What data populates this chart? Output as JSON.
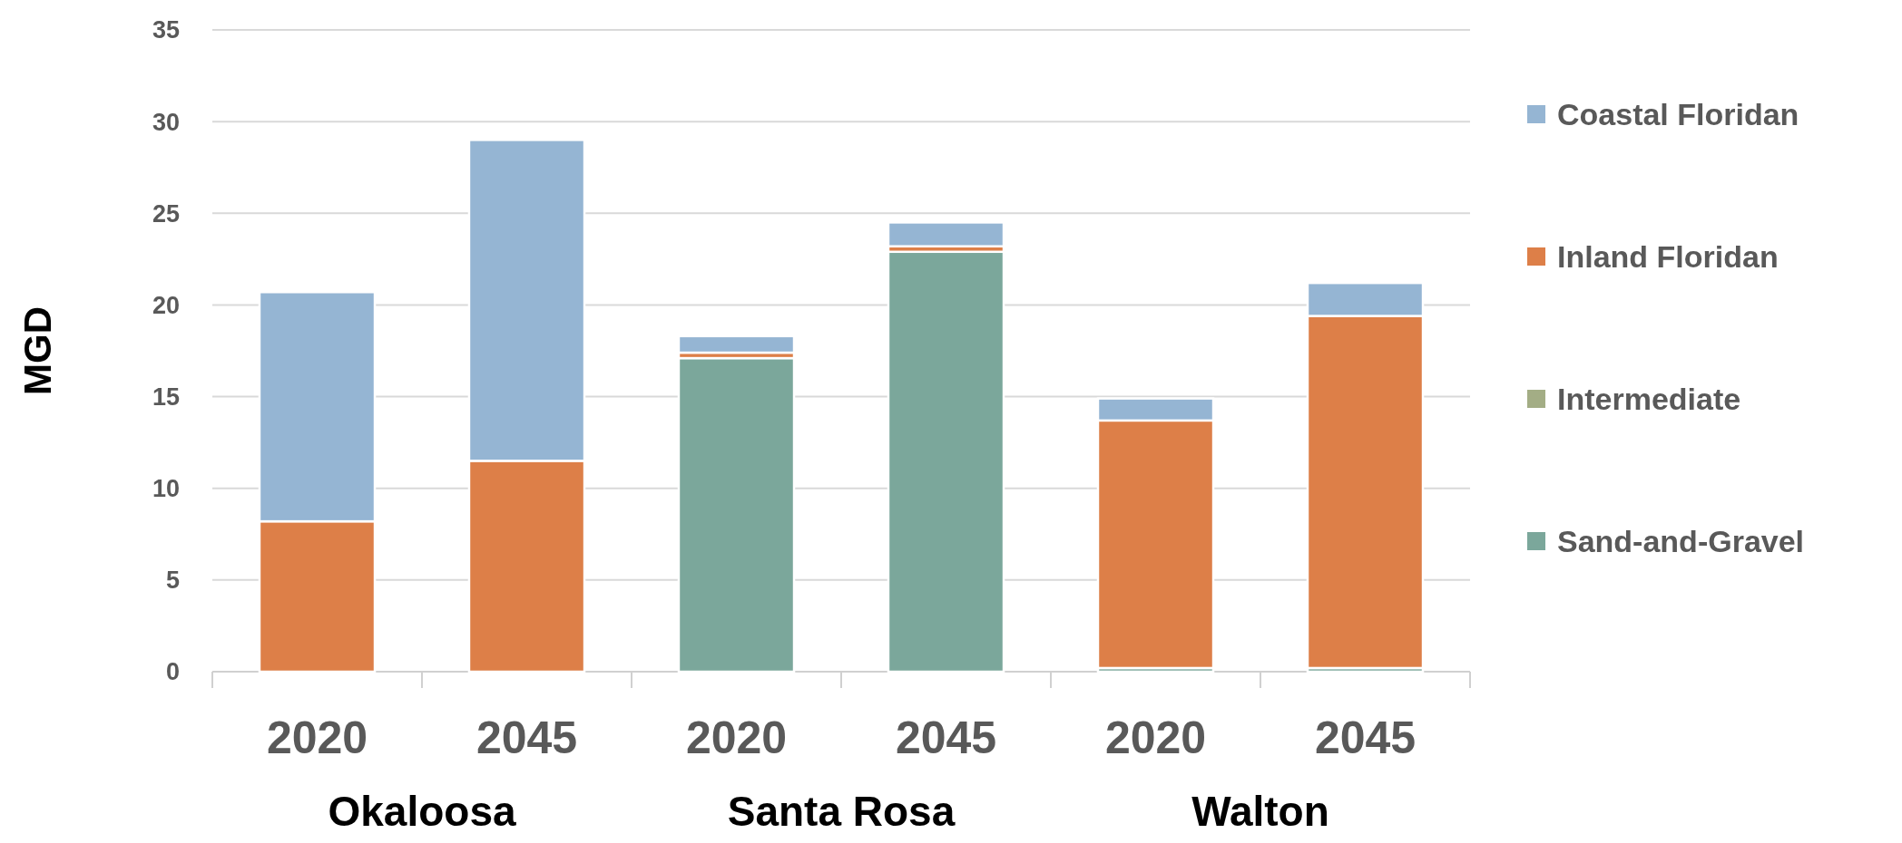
{
  "chart_data": {
    "type": "bar",
    "stacked": true,
    "ylabel": "MGD",
    "categories": [
      "2020",
      "2045",
      "2020",
      "2045",
      "2020",
      "2045"
    ],
    "annotations": [
      "Okaloosa",
      "Santa Rosa",
      "Walton"
    ],
    "series": [
      {
        "name": "Sand-and-Gravel",
        "color": "#7ba79b",
        "values": [
          0,
          0,
          17.1,
          22.9,
          0.2,
          0.2
        ]
      },
      {
        "name": "Intermediate",
        "color": "#a3ad85",
        "values": [
          0,
          0,
          0,
          0,
          0,
          0
        ]
      },
      {
        "name": "Inland Floridan",
        "color": "#dd7f48",
        "values": [
          8.2,
          11.5,
          0.3,
          0.3,
          13.5,
          19.2
        ]
      },
      {
        "name": "Coastal Floridan",
        "color": "#95b5d3",
        "values": [
          12.5,
          17.5,
          0.9,
          1.3,
          1.2,
          1.8
        ]
      }
    ],
    "ylim": [
      0,
      35
    ],
    "yticks": [
      0,
      5,
      10,
      15,
      20,
      25,
      30,
      35
    ],
    "grid": "y",
    "legend": "right"
  }
}
